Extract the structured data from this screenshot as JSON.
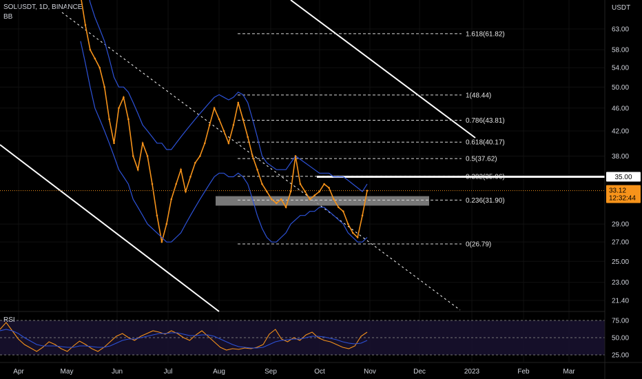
{
  "header": {
    "symbol": "SOLUSDT, 1D, BINANCE",
    "indicator": "BB"
  },
  "rsi_panel": {
    "label": "RSI",
    "levels": [
      "75.00",
      "50.00",
      "25.00"
    ]
  },
  "colors": {
    "price": "#f7931a",
    "bands": "#2d52d8",
    "rsi": "#f7931a",
    "rsi_ma": "#2d52d8",
    "fib": "#d9d9d9",
    "grid": "#111111",
    "hline": "#ffffff",
    "zone": "#8c8c8c",
    "price_tag": "#f7931a"
  },
  "chart_data": {
    "type": "line",
    "title": "SOLUSDT, 1D, BINANCE",
    "currency_label": "USDT",
    "x_ticks": [
      "Apr",
      "May",
      "Jun",
      "Jul",
      "Aug",
      "Sep",
      "Oct",
      "Nov",
      "Dec",
      "2023",
      "Feb",
      "Mar"
    ],
    "y_ticks": [
      "63.00",
      "58.00",
      "54.00",
      "50.00",
      "46.00",
      "42.00",
      "38.00",
      "35.00",
      "33.12",
      "29.00",
      "27.00",
      "25.00",
      "23.00",
      "21.40"
    ],
    "y_tick_values": [
      63,
      58,
      54,
      50,
      46,
      42,
      38,
      35,
      33.12,
      29,
      27,
      25,
      23,
      21.4
    ],
    "last_price": "33.12",
    "countdown": "12:32:44",
    "horizontal_line": "35.00",
    "fib_levels": [
      {
        "label": "1.618(61.82)",
        "value": 61.82
      },
      {
        "label": "1(48.44)",
        "value": 48.44
      },
      {
        "label": "0.786(43.81)",
        "value": 43.81
      },
      {
        "label": "0.618(40.17)",
        "value": 40.17
      },
      {
        "label": "0.5(37.62)",
        "value": 37.62
      },
      {
        "label": "0.382(35.06)",
        "value": 35.06
      },
      {
        "label": "0.236(31.90)",
        "value": 31.9
      },
      {
        "label": "0(26.79)",
        "value": 26.79
      }
    ],
    "support_zone": [
      31.2,
      32.4
    ],
    "series": [
      {
        "name": "SOLUSDT",
        "values": [
          72,
          64,
          58,
          56,
          54,
          50,
          44,
          40,
          46,
          48,
          44,
          38,
          36,
          40,
          38,
          34,
          30,
          27,
          29,
          32,
          34,
          36,
          33,
          35,
          37,
          38,
          40,
          43,
          46,
          44,
          42,
          40,
          43,
          47,
          44,
          41,
          38,
          36,
          34,
          33,
          32,
          31.5,
          32,
          31,
          33,
          38,
          34,
          33,
          32,
          32.5,
          33,
          34,
          33.5,
          32,
          31,
          30.5,
          29,
          28,
          27.5,
          30,
          33.12
        ]
      },
      {
        "name": "BB upper",
        "values": [
          80,
          76,
          70,
          66,
          63,
          60,
          56,
          52,
          50,
          50,
          49,
          47,
          45,
          43,
          42,
          41,
          40,
          40,
          39,
          39,
          40,
          41,
          42,
          43,
          44,
          45,
          46,
          47,
          48,
          48.5,
          48,
          47.5,
          48,
          49,
          48.5,
          47,
          44,
          41,
          38,
          37,
          36.5,
          36,
          36,
          36,
          37,
          38,
          37.5,
          37,
          36.5,
          36,
          35.5,
          35.5,
          35.5,
          35,
          35,
          35,
          34.5,
          34,
          33.5,
          33,
          34
        ]
      },
      {
        "name": "BB lower",
        "values": [
          60,
          55,
          50,
          46,
          44,
          42,
          40,
          38,
          36,
          35,
          34,
          32,
          31,
          30,
          29,
          28.5,
          28,
          27.5,
          27,
          27,
          27.5,
          28,
          29,
          30,
          31,
          32,
          33,
          34,
          35,
          35.5,
          35.5,
          35,
          35,
          35.5,
          35,
          34,
          32,
          30,
          28.5,
          27.5,
          27,
          27,
          27.5,
          28,
          29,
          29.5,
          30,
          30,
          30.5,
          30.5,
          31,
          31,
          30.5,
          30,
          29.5,
          29,
          28,
          27.5,
          27,
          27,
          27.5
        ]
      }
    ],
    "rsi": {
      "ylim": [
        15,
        85
      ],
      "series": [
        {
          "name": "RSI",
          "values": [
            62,
            72,
            60,
            48,
            40,
            35,
            30,
            36,
            44,
            40,
            34,
            30,
            38,
            45,
            40,
            34,
            30,
            36,
            44,
            52,
            56,
            50,
            46,
            52,
            56,
            60,
            58,
            55,
            60,
            56,
            50,
            46,
            54,
            60,
            52,
            44,
            36,
            32,
            34,
            33,
            35,
            34,
            36,
            40,
            55,
            62,
            48,
            44,
            50,
            46,
            54,
            58,
            50,
            46,
            44,
            40,
            36,
            34,
            38,
            52,
            58
          ]
        },
        {
          "name": "RSI MA",
          "values": [
            60,
            62,
            60,
            56,
            50,
            45,
            40,
            38,
            38,
            38,
            37,
            36,
            36,
            38,
            38,
            37,
            36,
            36,
            38,
            42,
            46,
            48,
            48,
            50,
            52,
            54,
            56,
            56,
            57,
            57,
            55,
            53,
            53,
            54,
            54,
            52,
            48,
            44,
            40,
            37,
            36,
            35,
            35,
            36,
            40,
            44,
            46,
            47,
            48,
            48,
            50,
            52,
            52,
            51,
            49,
            47,
            44,
            42,
            41,
            42,
            46
          ]
        }
      ]
    }
  }
}
